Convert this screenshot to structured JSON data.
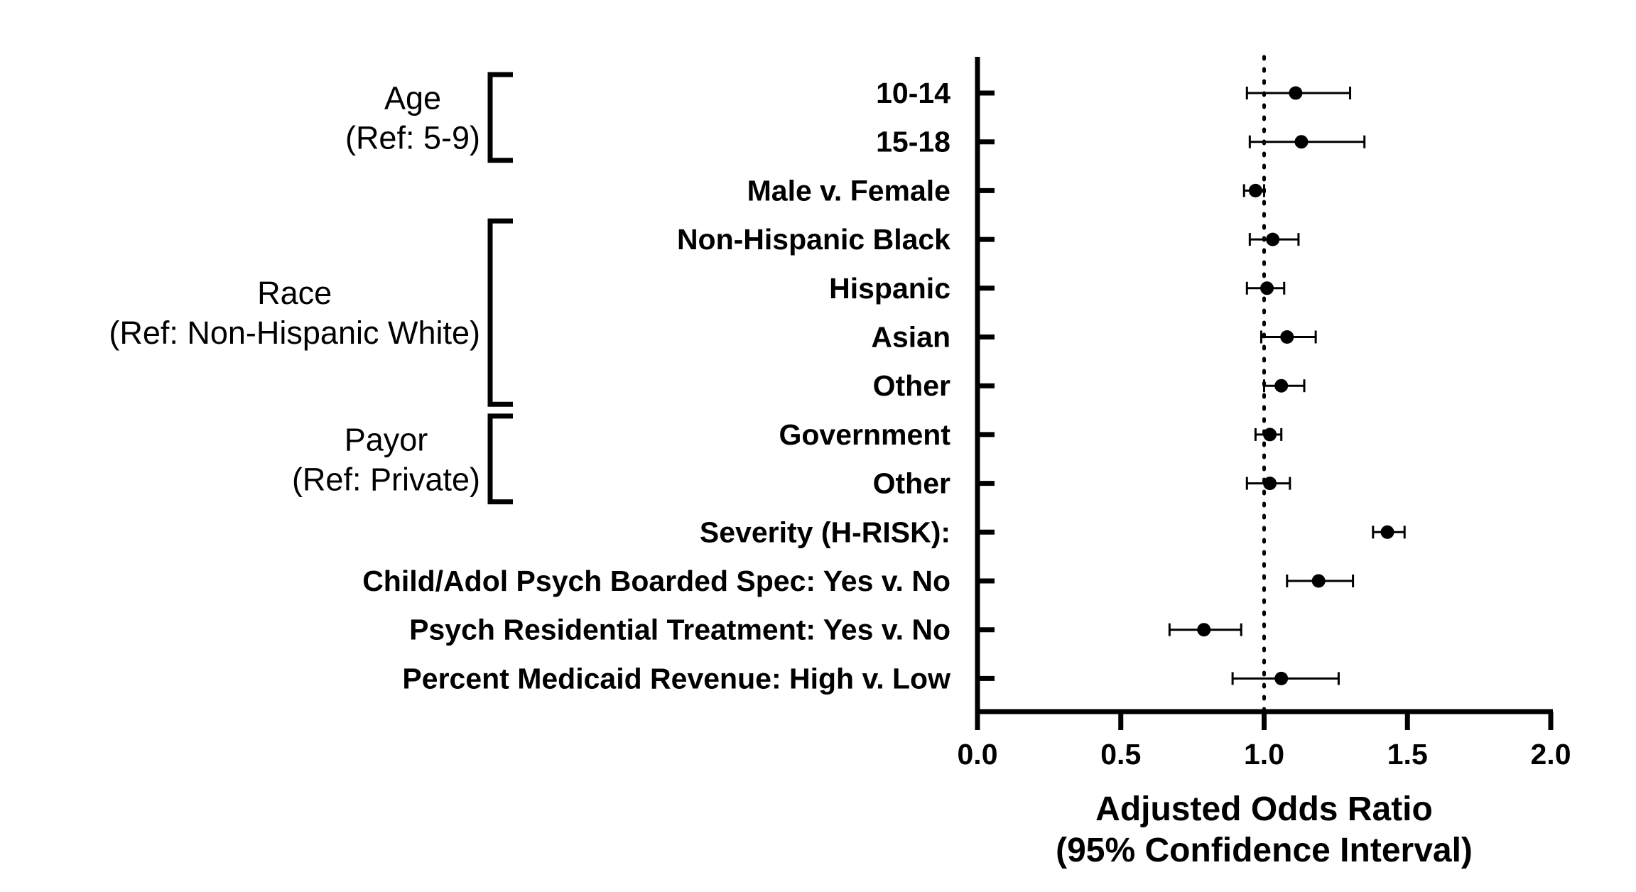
{
  "chart_data": {
    "type": "scatter",
    "subtype": "forest-plot",
    "title": "",
    "xlabel_lines": [
      "Adjusted Odds Ratio",
      "(95% Confidence Interval)"
    ],
    "xlim": [
      0.0,
      2.0
    ],
    "xticks": [
      0.0,
      0.5,
      1.0,
      1.5,
      2.0
    ],
    "xtick_labels": [
      "0.0",
      "0.5",
      "1.0",
      "1.5",
      "2.0"
    ],
    "reference_line": 1.0,
    "grid": false,
    "legend": "none",
    "color": "#000000",
    "rows": [
      {
        "label": "10-14",
        "or": 1.11,
        "lower": 0.94,
        "upper": 1.3
      },
      {
        "label": "15-18",
        "or": 1.13,
        "lower": 0.95,
        "upper": 1.35
      },
      {
        "label": "Male v. Female",
        "or": 0.97,
        "lower": 0.93,
        "upper": 1.0
      },
      {
        "label": "Non-Hispanic Black",
        "or": 1.03,
        "lower": 0.95,
        "upper": 1.12
      },
      {
        "label": "Hispanic",
        "or": 1.01,
        "lower": 0.94,
        "upper": 1.07
      },
      {
        "label": "Asian",
        "or": 1.08,
        "lower": 0.99,
        "upper": 1.18
      },
      {
        "label": "Other",
        "or": 1.06,
        "lower": 1.0,
        "upper": 1.14
      },
      {
        "label": "Government",
        "or": 1.02,
        "lower": 0.97,
        "upper": 1.06
      },
      {
        "label": "Other",
        "or": 1.02,
        "lower": 0.94,
        "upper": 1.09
      },
      {
        "label": "Severity (H-RISK):",
        "or": 1.43,
        "lower": 1.38,
        "upper": 1.49
      },
      {
        "label": "Child/Adol Psych Boarded Spec: Yes v. No",
        "or": 1.19,
        "lower": 1.08,
        "upper": 1.31
      },
      {
        "label": "Psych Residential Treatment: Yes v. No",
        "or": 0.79,
        "lower": 0.67,
        "upper": 0.92
      },
      {
        "label": "Percent Medicaid Revenue: High v. Low",
        "or": 1.06,
        "lower": 0.89,
        "upper": 1.26
      }
    ],
    "groups": [
      {
        "lines": [
          "Age",
          "(Ref: 5-9)"
        ],
        "first_row": 0,
        "last_row": 1
      },
      {
        "lines": [
          "Race",
          "(Ref: Non-Hispanic White)"
        ],
        "first_row": 3,
        "last_row": 6
      },
      {
        "lines": [
          "Payor",
          "(Ref: Private)"
        ],
        "first_row": 7,
        "last_row": 8
      }
    ]
  }
}
